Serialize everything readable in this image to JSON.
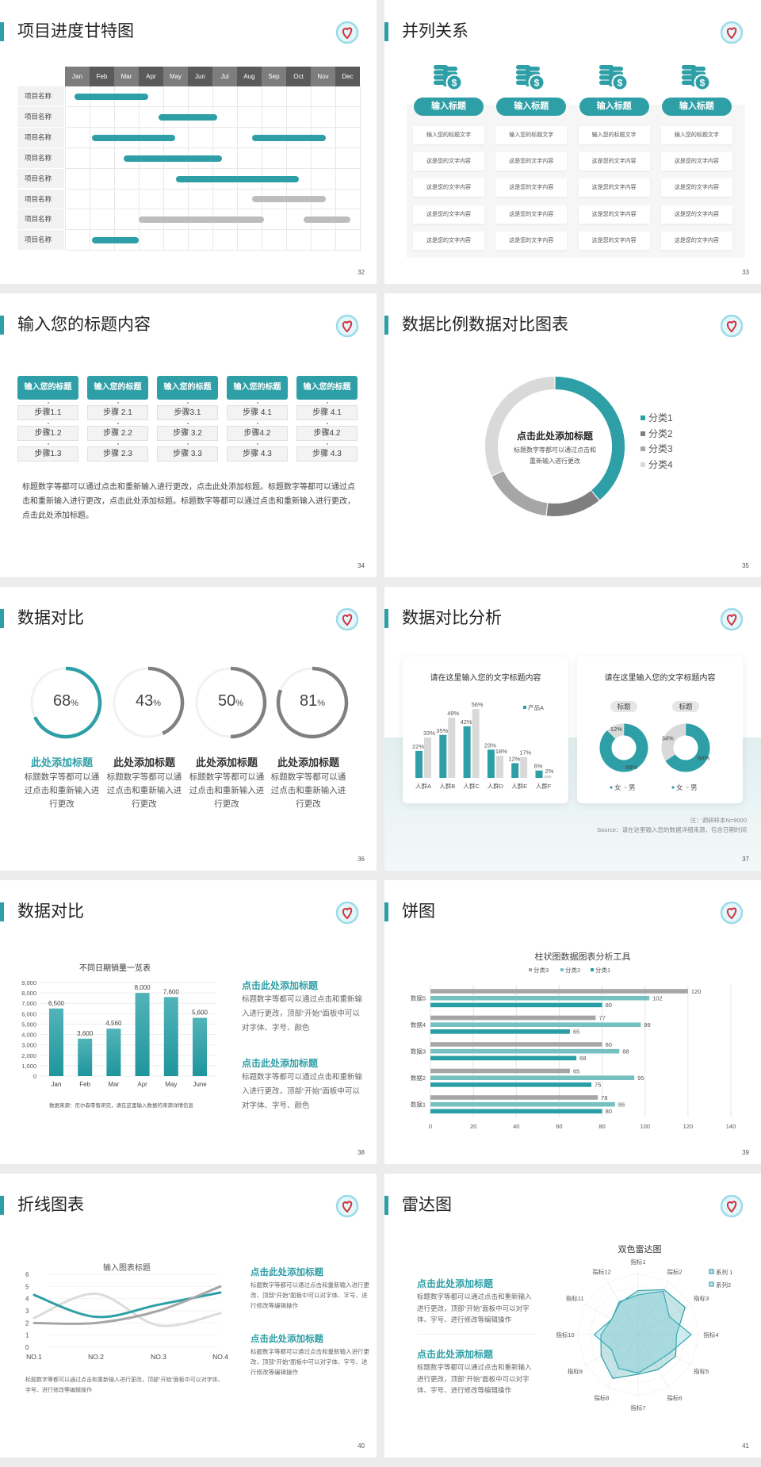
{
  "accent_color": "#2e9fa6",
  "gantt": {
    "title": "项目进度甘特图",
    "page": "32",
    "months": [
      "Jan",
      "Feb",
      "Mar",
      "Apr",
      "May",
      "Jun",
      "Jul",
      "Aug",
      "Sep",
      "Oct",
      "Nov",
      "Dec"
    ],
    "rows": [
      {
        "label": "项目名称",
        "bars": [
          {
            "start": 0.4,
            "end": 3.4,
            "color": "#2e9fa6"
          }
        ]
      },
      {
        "label": "项目名称",
        "bars": [
          {
            "start": 3.8,
            "end": 6.2,
            "color": "#2e9fa6"
          }
        ]
      },
      {
        "label": "项目名称",
        "bars": [
          {
            "start": 1.1,
            "end": 4.5,
            "color": "#2e9fa6"
          },
          {
            "start": 7.6,
            "end": 10.6,
            "color": "#2e9fa6"
          }
        ]
      },
      {
        "label": "项目名称",
        "bars": [
          {
            "start": 2.4,
            "end": 6.4,
            "color": "#2e9fa6"
          }
        ]
      },
      {
        "label": "项目名称",
        "bars": [
          {
            "start": 4.5,
            "end": 9.5,
            "color": "#2e9fa6"
          }
        ]
      },
      {
        "label": "项目名称",
        "bars": [
          {
            "start": 7.6,
            "end": 10.6,
            "color": "#bdbdbd"
          }
        ]
      },
      {
        "label": "项目名称",
        "bars": [
          {
            "start": 3.0,
            "end": 8.1,
            "color": "#bdbdbd"
          },
          {
            "start": 9.7,
            "end": 11.6,
            "color": "#bdbdbd"
          }
        ]
      },
      {
        "label": "项目名称",
        "bars": [
          {
            "start": 1.1,
            "end": 3.0,
            "color": "#2e9fa6"
          }
        ]
      }
    ]
  },
  "parallel": {
    "title": "并列关系",
    "page": "33",
    "icon": "coins-dollar-icon",
    "columns": [
      {
        "heading": "输入标题",
        "items": [
          "输入您的标题文字",
          "这是您的文字内容",
          "这是您的文字内容",
          "这是您的文字内容",
          "这是您的文字内容"
        ]
      },
      {
        "heading": "输入标题",
        "items": [
          "输入您的标题文字",
          "这是您的文字内容",
          "这是您的文字内容",
          "这是您的文字内容",
          "这是您的文字内容"
        ]
      },
      {
        "heading": "输入标题",
        "items": [
          "输入您的标题文字",
          "这是您的文字内容",
          "这是您的文字内容",
          "这是您的文字内容",
          "这是您的文字内容"
        ]
      },
      {
        "heading": "输入标题",
        "items": [
          "输入您的标题文字",
          "这是您的文字内容",
          "这是您的文字内容",
          "这是您的文字内容",
          "这是您的文字内容"
        ]
      }
    ]
  },
  "steps": {
    "title": "输入您的标题内容",
    "page": "34",
    "columns": [
      {
        "heading": "输入您的标题",
        "steps": [
          "步骤1.1",
          "步骤1.2",
          "步骤1.3"
        ]
      },
      {
        "heading": "输入您的标题",
        "steps": [
          "步骤 2.1",
          "步骤 2.2",
          "步骤 2.3"
        ]
      },
      {
        "heading": "输入您的标题",
        "steps": [
          "步骤3.1",
          "步骤 3.2",
          "步骤 3.3"
        ]
      },
      {
        "heading": "输入您的标题",
        "steps": [
          "步骤 4.1",
          "步骤4.2",
          "步骤 4.3"
        ]
      },
      {
        "heading": "输入您的标题",
        "steps": [
          "步骤 4.1",
          "步骤4.2",
          "步骤 4.3"
        ]
      }
    ],
    "paragraph": "标题数字等都可以通过点击和重新输入进行更改，点击此处添加标题。标题数字等都可以通过点击和重新输入进行更改，点击此处添加标题。标题数字等都可以通过点击和重新输入进行更改，点击此处添加标题。"
  },
  "donut": {
    "title": "数据比例数据对比图表",
    "page": "35",
    "center_title": "点击此处添加标题",
    "center_lines": [
      "标题数字等都可以通过点击和",
      "重新输入进行更改"
    ]
  },
  "progress": {
    "title": "数据对比",
    "page": "36",
    "items": [
      {
        "value": 68,
        "unit": "%",
        "title": "此处添加标题",
        "text": "标题数字等都可以通过点击和重新输入进行更改",
        "color": "#2e9fa6"
      },
      {
        "value": 43,
        "unit": "%",
        "title": "此处添加标题",
        "text": "标题数字等都可以通过点击和重新输入进行更改",
        "color": "#808080"
      },
      {
        "value": 50,
        "unit": "%",
        "title": "此处添加标题",
        "text": "标题数字等都可以通过点击和重新输入进行更改",
        "color": "#808080"
      },
      {
        "value": 81,
        "unit": "%",
        "title": "此处添加标题",
        "text": "标题数字等都可以通过点击和重新输入进行更改",
        "color": "#808080"
      }
    ]
  },
  "compare": {
    "title": "数据对比分析",
    "page": "37",
    "note": "注：调研样本N=9000",
    "source": "Source：请在这里输入您的数据详细来源，包含日期时间"
  },
  "sales": {
    "title": "数据对比",
    "page": "38",
    "blocks": [
      {
        "title": "点击此处添加标题",
        "text": "标题数字等都可以通过点击和重新输入进行更改，顶部“开始”面板中可以对字体、字号、颜色"
      },
      {
        "title": "点击此处添加标题",
        "text": "标题数字等都可以通过点击和重新输入进行更改，顶部“开始”面板中可以对字体、字号、颜色"
      }
    ]
  },
  "hbar": {
    "title": "饼图",
    "page": "39"
  },
  "line": {
    "title": "折线图表",
    "page": "40",
    "caption": "标题数字等都可以通过点击和重新输入进行更改，顶部“开始”面板中可以对字体、字号、进行修改等编辑操作",
    "blocks": [
      {
        "title": "点击此处添加标题",
        "text": "标题数字等都可以通过点击和重新输入进行更改，顶部“开始”面板中可以对字体、字号、进行修改等编辑操作"
      },
      {
        "title": "点击此处添加标题",
        "text": "标题数字等都可以通过点击和重新输入进行更改，顶部“开始”面板中可以对字体、字号、进行修改等编辑操作"
      }
    ]
  },
  "radar": {
    "title": "雷达图",
    "page": "41",
    "blocks": [
      {
        "title": "点击此处添加标题",
        "text": "标题数字等都可以通过点击和重新输入进行更改，顶部“开始”面板中可以对字体、字号、进行修改等编辑操作"
      },
      {
        "title": "点击此处添加标题",
        "text": "标题数字等都可以通过点击和重新输入进行更改，顶部“开始”面板中可以对字体、字号、进行修改等编辑操作"
      }
    ]
  },
  "chart_data": [
    {
      "type": "pie",
      "variant": "donut",
      "categories": [
        "分类1",
        "分类2",
        "分类3",
        "分类4"
      ],
      "values": [
        39,
        13,
        16,
        32
      ],
      "colors": [
        "#2e9fa6",
        "#7f7f7f",
        "#a6a6a6",
        "#d9d9d9"
      ],
      "legend": "right"
    },
    {
      "type": "bar",
      "title": "请在这里输入您的文字标题内容",
      "categories": [
        "人群A",
        "人群B",
        "人群C",
        "人群D",
        "人群E",
        "人群F"
      ],
      "unit": "%",
      "series": [
        {
          "name": "产品A",
          "values": [
            22,
            35,
            42,
            23,
            12,
            6
          ],
          "color": "#2e9fa6"
        },
        {
          "values": [
            33,
            49,
            56,
            18,
            17,
            2
          ],
          "color": "#d9d9d9"
        }
      ],
      "legend": "top-right"
    },
    {
      "type": "pie",
      "variant": "donut",
      "title": "请在这里输入您的文字标题内容",
      "unit": "%",
      "charts": [
        {
          "label": "标题",
          "categories": [
            "女",
            "男"
          ],
          "values": [
            88,
            12
          ]
        },
        {
          "label": "标题",
          "categories": [
            "女",
            "男"
          ],
          "values": [
            66,
            34
          ]
        }
      ],
      "colors": [
        "#2e9fa6",
        "#d9d9d9"
      ],
      "legend": "bottom"
    },
    {
      "type": "bar",
      "title": "不同日期销量一览表",
      "categories": [
        "Jan",
        "Feb",
        "Mar",
        "Apr",
        "May",
        "June"
      ],
      "values": [
        6500,
        3600,
        4560,
        8000,
        7600,
        5600
      ],
      "value_labels": [
        "6,500",
        "3,600",
        "4,560",
        "8,000",
        "7,600",
        "5,600"
      ],
      "ylim": [
        0,
        9000
      ],
      "yticks": [
        "0",
        "1,000",
        "2,000",
        "3,000",
        "4,000",
        "5,000",
        "6,000",
        "7,000",
        "8,000",
        "9,000"
      ],
      "grid": true,
      "source": "数据来源：尼尔森零售研究，请在这里输入数据的来源详情信息"
    },
    {
      "type": "bar",
      "orientation": "horizontal",
      "title": "柱状图数据图表分析工具",
      "categories": [
        "数据1",
        "数据2",
        "数据3",
        "数据4",
        "数据5"
      ],
      "xlim": [
        0,
        140
      ],
      "xticks": [
        "0",
        "20",
        "40",
        "60",
        "80",
        "100",
        "120",
        "140"
      ],
      "grid": true,
      "legend": "top",
      "series": [
        {
          "name": "分类3",
          "values": [
            78,
            65,
            80,
            77,
            120
          ],
          "color": "#a6a6a6"
        },
        {
          "name": "分类2",
          "values": [
            86,
            95,
            88,
            98,
            102
          ],
          "color": "#76c0c2"
        },
        {
          "name": "分类1",
          "values": [
            80,
            75,
            68,
            65,
            80
          ],
          "color": "#2a9ea5"
        }
      ]
    },
    {
      "type": "line",
      "title": "输入图表标题",
      "categories": [
        "NO.1",
        "NO.2",
        "NO.3",
        "NO.4"
      ],
      "ylim": [
        0,
        6
      ],
      "yticks": [
        "0",
        "1",
        "2",
        "3",
        "4",
        "5",
        "6"
      ],
      "smooth": true,
      "series": [
        {
          "values": [
            4.3,
            2.5,
            3.5,
            4.5
          ],
          "color": "#2e9fa6"
        },
        {
          "values": [
            2.4,
            4.4,
            1.8,
            2.8
          ],
          "color": "#dcdcdc"
        },
        {
          "values": [
            2,
            2,
            3,
            5
          ],
          "color": "#a6a6a6"
        }
      ]
    },
    {
      "type": "radar",
      "title": "双色雷达图",
      "categories": [
        "指标1",
        "指标2",
        "指标3",
        "指标4",
        "指标5",
        "指标6",
        "指标7",
        "指标8",
        "指标9",
        "指标10",
        "指标11",
        "指标12"
      ],
      "rmax": 10,
      "legend": "top-right",
      "series": [
        {
          "name": "系列 1",
          "values": [
            7.2,
            8.5,
            8.9,
            6.3,
            7.1,
            6.6,
            6.5,
            8.3,
            7.0,
            6.1,
            5.0,
            6.0
          ],
          "color": "#2e9fa6"
        },
        {
          "name": "系列2",
          "values": [
            6.5,
            8.2,
            5.9,
            8.7,
            6.0,
            5.4,
            6.3,
            6.4,
            5.0,
            7.2,
            5.0,
            6.2
          ],
          "color": "#3aa9b4"
        }
      ]
    }
  ]
}
